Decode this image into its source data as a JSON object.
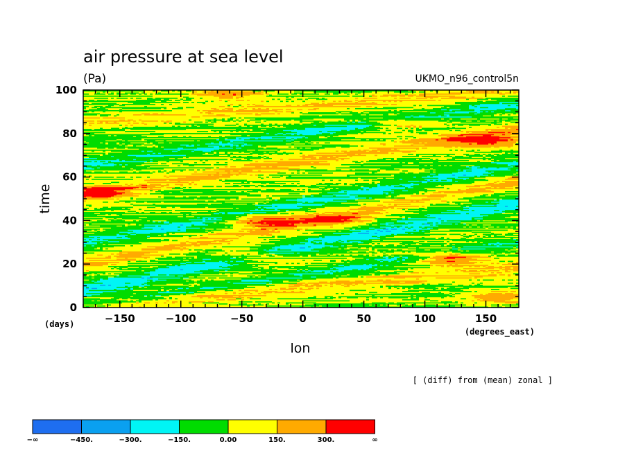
{
  "chart_data": {
    "type": "heatmap",
    "title": "air pressure at sea level",
    "units": "(Pa)",
    "source": "UKMO_n96_control5n",
    "xlabel": "lon",
    "xunit": "(degrees_east)",
    "ylabel": "time",
    "yunit": "(days)",
    "note": "[ (diff) from (mean) zonal ]",
    "xlim": [
      -180,
      177
    ],
    "ylim": [
      0,
      100
    ],
    "xticks": [
      -150,
      -100,
      -50,
      0,
      50,
      100,
      150
    ],
    "yticks": [
      0,
      20,
      40,
      60,
      80,
      100
    ],
    "xtick_labels": [
      "−150",
      "−100",
      "−50",
      "0",
      "50",
      "100",
      "150"
    ],
    "ytick_labels": [
      "0",
      "20",
      "40",
      "60",
      "80",
      "100"
    ],
    "grid": false,
    "legend_position": "bottom-left",
    "levels": [
      -450,
      -300,
      -150,
      0,
      150,
      300
    ],
    "legend_labels": [
      "−∞",
      "−450.",
      "−300.",
      "−150.",
      "0.00",
      "150.",
      "300.",
      "∞"
    ],
    "colors": [
      "#1e6ef0",
      "#0aa0f0",
      "#00f5f5",
      "#00dc00",
      "#ffff00",
      "#ffaa00",
      "#ff0000"
    ],
    "features": [
      {
        "label": "negative band",
        "value": -230,
        "lon_start": -180,
        "t_start": 8,
        "lon_end": 177,
        "t_end": 48,
        "width_days": 3.5
      },
      {
        "label": "negative band",
        "value": -200,
        "lon_start": -180,
        "t_start": 30,
        "lon_end": 177,
        "t_end": 66,
        "width_days": 3.0
      },
      {
        "label": "negative band",
        "value": -180,
        "lon_start": -180,
        "t_start": 66,
        "lon_end": 177,
        "t_end": 94,
        "width_days": 3.0
      },
      {
        "label": "negative band",
        "value": -170,
        "lon_start": -180,
        "t_start": 0,
        "lon_end": 177,
        "t_end": 30,
        "width_days": 2.5
      },
      {
        "label": "positive band",
        "value": 200,
        "lon_start": -180,
        "t_start": 52,
        "lon_end": 177,
        "t_end": 82,
        "width_days": 3.0
      },
      {
        "label": "positive band",
        "value": 180,
        "lon_start": -180,
        "t_start": 20,
        "lon_end": 177,
        "t_end": 58,
        "width_days": 3.0
      },
      {
        "label": "positive band",
        "value": 160,
        "lon_start": -180,
        "t_start": 85,
        "lon_end": 177,
        "t_end": 100,
        "width_days": 3.0
      },
      {
        "label": "positive band",
        "value": 170,
        "lon_start": -180,
        "t_start": 0,
        "lon_end": 177,
        "t_end": 18,
        "width_days": 3.0
      }
    ],
    "blobs": [
      {
        "lon": -170,
        "t": 53,
        "value": 280
      },
      {
        "lon": 120,
        "t": 23,
        "value": 330
      },
      {
        "lon": 150,
        "t": 77,
        "value": 320
      },
      {
        "lon": -30,
        "t": 40,
        "value": 340
      },
      {
        "lon": 30,
        "t": 40,
        "value": 250
      },
      {
        "lon": 80,
        "t": 85,
        "value": 230
      },
      {
        "lon": -40,
        "t": 24,
        "value": 240
      },
      {
        "lon": 160,
        "t": 5,
        "value": 260
      },
      {
        "lon": -60,
        "t": 98,
        "value": 220
      }
    ]
  }
}
